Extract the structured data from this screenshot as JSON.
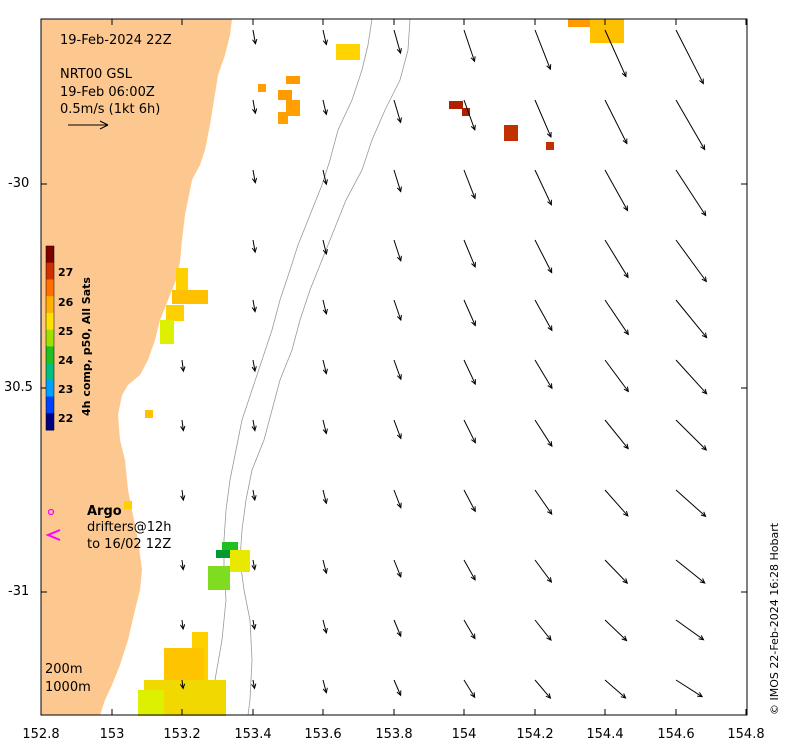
{
  "header": {
    "date_line": "19-Feb-2024 22Z",
    "model_line": "NRT00 GSL",
    "time_line": "19-Feb 06:00Z",
    "scale_line": "0.5m/s (1kt 6h)"
  },
  "axes": {
    "x_ticks": [
      "152.8",
      "153",
      "153.2",
      "153.4",
      "153.6",
      "153.8",
      "154",
      "154.2",
      "154.4",
      "154.6",
      "154.8"
    ],
    "y_ticks": [
      "-30",
      "30.5",
      "-31"
    ]
  },
  "colorbar": {
    "ticks": [
      "27",
      "26",
      "25",
      "24",
      "23",
      "22"
    ],
    "title": "4h comp, p50, All Sats",
    "colors": [
      "#000080",
      "#0040ff",
      "#00a0ff",
      "#00c080",
      "#20c020",
      "#a0e000",
      "#ffe000",
      "#ffb000",
      "#ff7000",
      "#d03000",
      "#800000"
    ]
  },
  "legend": {
    "argo_label": "Argo",
    "drifters_line1": "drifters@12h",
    "drifters_line2": "to 16/02 12Z",
    "argo_color": "#ff00ff"
  },
  "depth_labels": {
    "d200": "200m",
    "d1000": "1000m"
  },
  "credit": "© IMOS 22-Feb-2024 16:28 Hobart",
  "land_color": "#fdc890"
}
